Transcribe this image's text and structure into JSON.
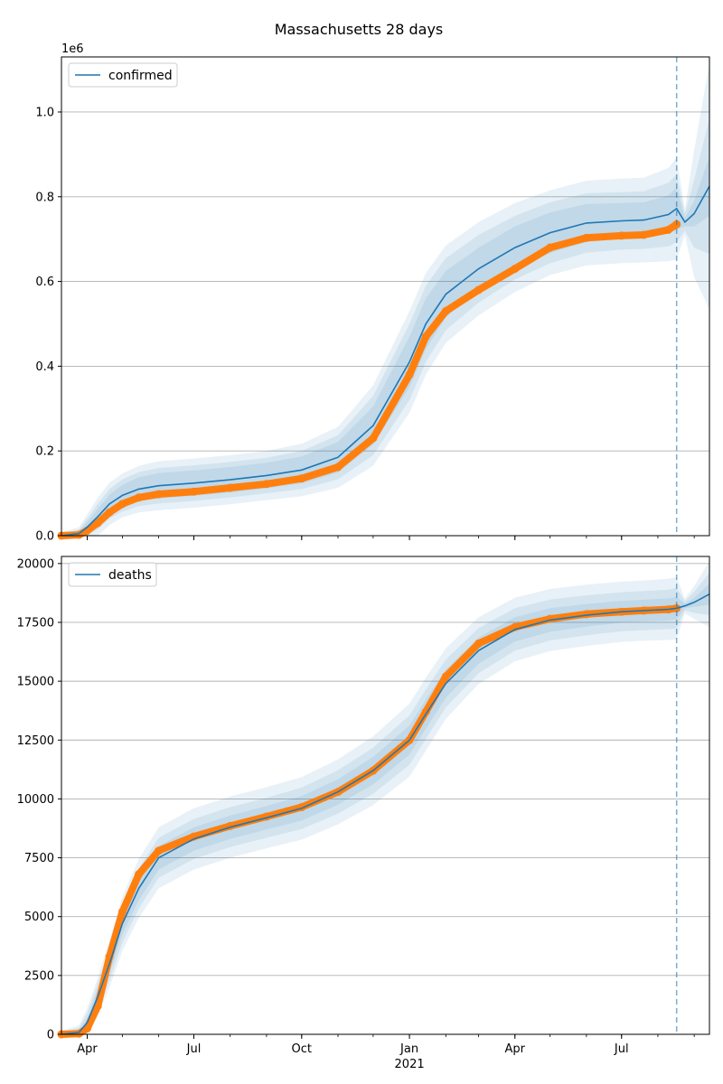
{
  "title": "Massachusetts 28 days",
  "colors": {
    "model_line": "#1f77b4",
    "band": "#1f77b4",
    "observed": "#ff7f0e",
    "grid": "#b0b0b0",
    "vline": "#1f77b4"
  },
  "x_axis": {
    "range": [
      "2020-03-10",
      "2021-09-14"
    ],
    "major_ticks": [
      {
        "date": "2020-04-01",
        "label": "Apr"
      },
      {
        "date": "2020-07-01",
        "label": "Jul"
      },
      {
        "date": "2020-10-01",
        "label": "Oct"
      },
      {
        "date": "2021-01-01",
        "label": "Jan"
      },
      {
        "date": "2021-04-01",
        "label": "Apr"
      },
      {
        "date": "2021-07-01",
        "label": "Jul"
      }
    ],
    "year_label": {
      "date": "2021-01-01",
      "label": "2021"
    },
    "forecast_start": "2021-08-17"
  },
  "chart_data": [
    {
      "type": "line",
      "panel": "top",
      "legend": [
        "confirmed"
      ],
      "legend_position": "top-left",
      "grid": "y",
      "scale_label": "1e6",
      "ylim": [
        0,
        1.13
      ],
      "yticks": [
        {
          "v": 0.0,
          "label": "0.0"
        },
        {
          "v": 0.2,
          "label": "0.2"
        },
        {
          "v": 0.4,
          "label": "0.4"
        },
        {
          "v": 0.6,
          "label": "0.6"
        },
        {
          "v": 0.8,
          "label": "0.8"
        },
        {
          "v": 1.0,
          "label": "1.0"
        }
      ],
      "series": [
        {
          "name": "confirmed",
          "x": [
            "2020-03-10",
            "2020-03-25",
            "2020-04-01",
            "2020-04-10",
            "2020-04-20",
            "2020-05-01",
            "2020-05-15",
            "2020-06-01",
            "2020-07-01",
            "2020-08-01",
            "2020-09-01",
            "2020-10-01",
            "2020-11-01",
            "2020-12-01",
            "2021-01-01",
            "2021-01-15",
            "2021-02-01",
            "2021-03-01",
            "2021-04-01",
            "2021-05-01",
            "2021-06-01",
            "2021-07-01",
            "2021-07-20",
            "2021-08-10",
            "2021-08-17",
            "2021-08-24",
            "2021-09-01",
            "2021-09-14"
          ],
          "values": [
            0.0,
            0.005,
            0.02,
            0.045,
            0.075,
            0.095,
            0.11,
            0.118,
            0.124,
            0.132,
            0.142,
            0.155,
            0.185,
            0.26,
            0.41,
            0.5,
            0.57,
            0.63,
            0.68,
            0.715,
            0.738,
            0.743,
            0.745,
            0.758,
            0.772,
            0.74,
            0.76,
            0.825
          ],
          "band_inner": [
            0.003,
            0.006,
            0.012,
            0.018,
            0.022,
            0.025,
            0.028,
            0.03,
            0.03,
            0.03,
            0.03,
            0.032,
            0.036,
            0.045,
            0.06,
            0.06,
            0.055,
            0.05,
            0.05,
            0.048,
            0.045,
            0.042,
            0.042,
            0.045,
            0.05,
            0.01,
            0.03,
            0.07
          ],
          "band_mid": [
            0.005,
            0.01,
            0.02,
            0.03,
            0.035,
            0.038,
            0.04,
            0.042,
            0.042,
            0.042,
            0.042,
            0.045,
            0.052,
            0.07,
            0.09,
            0.09,
            0.085,
            0.08,
            0.075,
            0.072,
            0.07,
            0.068,
            0.068,
            0.075,
            0.08,
            0.02,
            0.08,
            0.16
          ],
          "band_outer": [
            0.008,
            0.015,
            0.03,
            0.045,
            0.05,
            0.052,
            0.055,
            0.058,
            0.058,
            0.058,
            0.058,
            0.062,
            0.072,
            0.095,
            0.12,
            0.12,
            0.115,
            0.11,
            0.105,
            0.1,
            0.1,
            0.1,
            0.1,
            0.11,
            0.12,
            0.03,
            0.15,
            0.29
          ]
        },
        {
          "name": "observed",
          "x": [
            "2020-03-10",
            "2020-03-25",
            "2020-04-01",
            "2020-04-10",
            "2020-04-20",
            "2020-05-01",
            "2020-05-15",
            "2020-06-01",
            "2020-07-01",
            "2020-08-01",
            "2020-09-01",
            "2020-10-01",
            "2020-11-01",
            "2020-12-01",
            "2021-01-01",
            "2021-01-15",
            "2021-02-01",
            "2021-03-01",
            "2021-04-01",
            "2021-05-01",
            "2021-06-01",
            "2021-07-01",
            "2021-07-20",
            "2021-08-10",
            "2021-08-17"
          ],
          "values": [
            0.0,
            0.002,
            0.012,
            0.03,
            0.055,
            0.075,
            0.09,
            0.098,
            0.104,
            0.113,
            0.122,
            0.135,
            0.162,
            0.23,
            0.38,
            0.47,
            0.53,
            0.58,
            0.63,
            0.68,
            0.703,
            0.708,
            0.71,
            0.722,
            0.735
          ]
        }
      ]
    },
    {
      "type": "line",
      "panel": "bottom",
      "legend": [
        "deaths"
      ],
      "legend_position": "top-left",
      "grid": "y",
      "ylim": [
        0,
        20300
      ],
      "yticks": [
        {
          "v": 0,
          "label": "0"
        },
        {
          "v": 2500,
          "label": "2500"
        },
        {
          "v": 5000,
          "label": "5000"
        },
        {
          "v": 7500,
          "label": "7500"
        },
        {
          "v": 10000,
          "label": "10000"
        },
        {
          "v": 12500,
          "label": "12500"
        },
        {
          "v": 15000,
          "label": "15000"
        },
        {
          "v": 17500,
          "label": "17500"
        },
        {
          "v": 20000,
          "label": "20000"
        }
      ],
      "series": [
        {
          "name": "deaths",
          "x": [
            "2020-03-10",
            "2020-03-25",
            "2020-04-01",
            "2020-04-10",
            "2020-04-20",
            "2020-05-01",
            "2020-05-15",
            "2020-06-01",
            "2020-07-01",
            "2020-08-01",
            "2020-09-01",
            "2020-10-01",
            "2020-11-01",
            "2020-12-01",
            "2021-01-01",
            "2021-01-15",
            "2021-02-01",
            "2021-03-01",
            "2021-04-01",
            "2021-05-01",
            "2021-06-01",
            "2021-07-01",
            "2021-07-20",
            "2021-08-10",
            "2021-08-17",
            "2021-08-24",
            "2021-09-01",
            "2021-09-14"
          ],
          "values": [
            0,
            80,
            500,
            1600,
            3000,
            4700,
            6200,
            7500,
            8300,
            8800,
            9200,
            9600,
            10300,
            11200,
            12500,
            13600,
            14900,
            16300,
            17200,
            17600,
            17800,
            17950,
            18000,
            18050,
            18100,
            18200,
            18350,
            18700
          ],
          "band_inner": [
            50,
            100,
            200,
            300,
            400,
            450,
            500,
            500,
            500,
            500,
            500,
            520,
            540,
            580,
            620,
            620,
            600,
            560,
            520,
            500,
            480,
            460,
            460,
            470,
            480,
            100,
            200,
            450
          ],
          "band_mid": [
            100,
            200,
            400,
            550,
            700,
            800,
            850,
            850,
            850,
            850,
            850,
            880,
            920,
            980,
            1050,
            1050,
            1020,
            960,
            900,
            870,
            850,
            830,
            830,
            840,
            860,
            200,
            450,
            900
          ],
          "band_outer": [
            150,
            300,
            600,
            800,
            1000,
            1150,
            1250,
            1300,
            1300,
            1300,
            1300,
            1330,
            1380,
            1460,
            1550,
            1550,
            1500,
            1420,
            1350,
            1320,
            1300,
            1280,
            1280,
            1300,
            1320,
            300,
            700,
            1400
          ]
        },
        {
          "name": "observed",
          "x": [
            "2020-03-10",
            "2020-03-25",
            "2020-04-01",
            "2020-04-10",
            "2020-04-20",
            "2020-05-01",
            "2020-05-15",
            "2020-06-01",
            "2020-07-01",
            "2020-08-01",
            "2020-09-01",
            "2020-10-01",
            "2020-11-01",
            "2020-12-01",
            "2021-01-01",
            "2021-01-15",
            "2021-02-01",
            "2021-03-01",
            "2021-04-01",
            "2021-05-01",
            "2021-06-01",
            "2021-07-01",
            "2021-07-20",
            "2021-08-10",
            "2021-08-17"
          ],
          "values": [
            0,
            30,
            250,
            1200,
            3300,
            5200,
            6800,
            7800,
            8400,
            8850,
            9250,
            9650,
            10300,
            11200,
            12500,
            13700,
            15200,
            16600,
            17300,
            17650,
            17850,
            17950,
            18000,
            18050,
            18100
          ]
        }
      ]
    }
  ]
}
